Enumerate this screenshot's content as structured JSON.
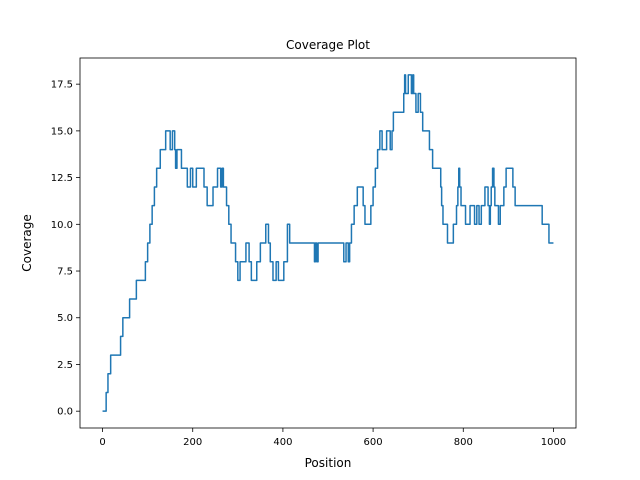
{
  "chart_data": {
    "type": "line",
    "title": "Coverage Plot",
    "xlabel": "Position",
    "ylabel": "Coverage",
    "xlim": [
      -50,
      1050
    ],
    "ylim": [
      -0.9,
      18.9
    ],
    "xticks": [
      0,
      200,
      400,
      600,
      800,
      1000
    ],
    "xtick_labels": [
      "0",
      "200",
      "400",
      "600",
      "800",
      "1000"
    ],
    "yticks": [
      0,
      2.5,
      5,
      7.5,
      10,
      12.5,
      15,
      17.5
    ],
    "ytick_labels": [
      "0.0",
      "2.5",
      "5.0",
      "7.5",
      "10.0",
      "12.5",
      "15.0",
      "17.5"
    ],
    "grid": false,
    "legend": "none",
    "series": [
      {
        "color": "#1f77b4",
        "step": true,
        "x": [
          0,
          8,
          12,
          18,
          30,
          40,
          45,
          60,
          75,
          88,
          95,
          100,
          105,
          110,
          115,
          120,
          128,
          135,
          140,
          150,
          155,
          160,
          162,
          165,
          168,
          175,
          188,
          195,
          200,
          208,
          212,
          215,
          225,
          232,
          245,
          250,
          255,
          262,
          265,
          268,
          272,
          275,
          280,
          285,
          290,
          295,
          300,
          305,
          312,
          318,
          322,
          325,
          330,
          342,
          350,
          358,
          362,
          365,
          368,
          372,
          378,
          385,
          390,
          392,
          402,
          407,
          410,
          415,
          420,
          432,
          450,
          462,
          470,
          472,
          475,
          478,
          490,
          495,
          510,
          515,
          520,
          525,
          530,
          535,
          540,
          545,
          548,
          552,
          558,
          565,
          570,
          575,
          578,
          582,
          590,
          595,
          600,
          605,
          610,
          615,
          620,
          630,
          638,
          642,
          645,
          650,
          665,
          668,
          670,
          672,
          678,
          685,
          688,
          690,
          695,
          700,
          705,
          710,
          718,
          722,
          725,
          732,
          738,
          740,
          742,
          748,
          750,
          752,
          755,
          760,
          765,
          768,
          778,
          785,
          788,
          790,
          792,
          795,
          805,
          815,
          825,
          830,
          835,
          840,
          845,
          848,
          850,
          852,
          855,
          858,
          860,
          862,
          865,
          868,
          870,
          872,
          875,
          878,
          882,
          890,
          895,
          900,
          905,
          910,
          915,
          920,
          930,
          945,
          950,
          955,
          975,
          990,
          995,
          1000
        ],
        "values": [
          0,
          1,
          2,
          3,
          3,
          4,
          5,
          6,
          7,
          7,
          8,
          9,
          10,
          11,
          12,
          13,
          14,
          14,
          15,
          14,
          15,
          14,
          13,
          14,
          14,
          13,
          12,
          13,
          12,
          13,
          13,
          13,
          12,
          11,
          12,
          12,
          13,
          12,
          13,
          12,
          12,
          11,
          10,
          9,
          9,
          8,
          7,
          8,
          8,
          9,
          9,
          8,
          7,
          8,
          9,
          9,
          10,
          10,
          9,
          8,
          7,
          8,
          7,
          7,
          8,
          8,
          10,
          9,
          9,
          9,
          9,
          9,
          8,
          9,
          8,
          9,
          9,
          9,
          9,
          9,
          9,
          9,
          9,
          8,
          9,
          8,
          9,
          10,
          11,
          12,
          12,
          12,
          11,
          10,
          10,
          11,
          12,
          13,
          14,
          15,
          14,
          15,
          14,
          15,
          16,
          16,
          16,
          17,
          18,
          17,
          18,
          17,
          18,
          17,
          16,
          17,
          16,
          15,
          15,
          15,
          14,
          13,
          13,
          13,
          13,
          13,
          12,
          11,
          10,
          10,
          9,
          9,
          10,
          11,
          12,
          13,
          12,
          11,
          10,
          11,
          10,
          11,
          10,
          11,
          11,
          12,
          12,
          12,
          11,
          10,
          11,
          12,
          13,
          12,
          11,
          11,
          11,
          10,
          11,
          12,
          13,
          13,
          13,
          12,
          11,
          11,
          11,
          11,
          11,
          11,
          10,
          9,
          9,
          9
        ]
      }
    ]
  }
}
